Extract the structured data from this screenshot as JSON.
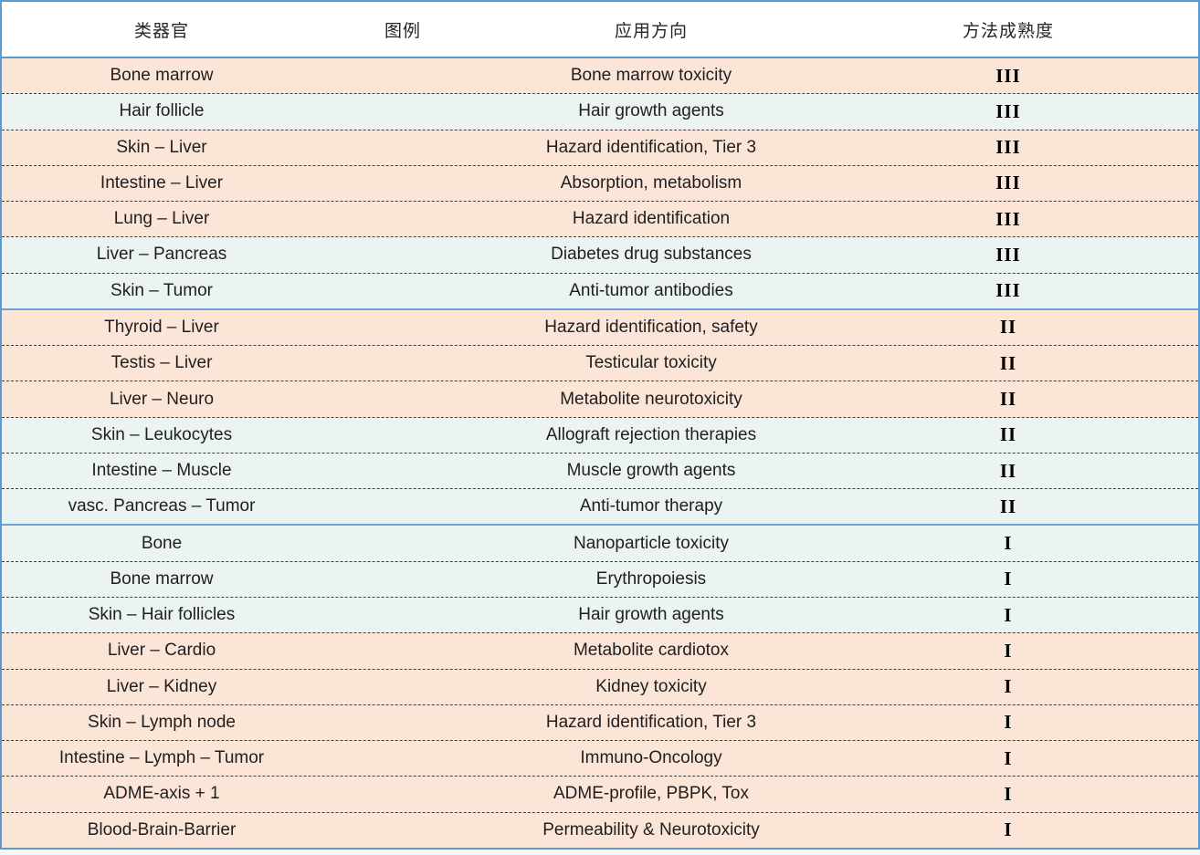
{
  "table": {
    "headers": [
      {
        "id": "organoid",
        "label": "类器官"
      },
      {
        "id": "legend",
        "label": "图例"
      },
      {
        "id": "application",
        "label": "应用方向"
      },
      {
        "id": "maturity",
        "label": "方法成熟度"
      }
    ],
    "rows": [
      {
        "organoid": "Bone marrow",
        "legend": "",
        "application": "Bone marrow toxicity",
        "maturity": "III",
        "tone": "peach",
        "group_start": false
      },
      {
        "organoid": "Hair follicle",
        "legend": "",
        "application": "Hair growth agents",
        "maturity": "III",
        "tone": "mint",
        "group_start": false
      },
      {
        "organoid": "Skin – Liver",
        "legend": "",
        "application": "Hazard identification, Tier 3",
        "maturity": "III",
        "tone": "peach",
        "group_start": false
      },
      {
        "organoid": "Intestine – Liver",
        "legend": "",
        "application": "Absorption, metabolism",
        "maturity": "III",
        "tone": "peach",
        "group_start": false
      },
      {
        "organoid": "Lung – Liver",
        "legend": "",
        "application": "Hazard identification",
        "maturity": "III",
        "tone": "peach",
        "group_start": false
      },
      {
        "organoid": "Liver – Pancreas",
        "legend": "",
        "application": "Diabetes drug substances",
        "maturity": "III",
        "tone": "mint",
        "group_start": false
      },
      {
        "organoid": "Skin – Tumor",
        "legend": "",
        "application": "Anti-tumor antibodies",
        "maturity": "III",
        "tone": "mint",
        "group_start": false
      },
      {
        "organoid": "Thyroid – Liver",
        "legend": "",
        "application": "Hazard identification, safety",
        "maturity": "II",
        "tone": "peach",
        "group_start": true
      },
      {
        "organoid": "Testis – Liver",
        "legend": "",
        "application": "Testicular toxicity",
        "maturity": "II",
        "tone": "peach",
        "group_start": false
      },
      {
        "organoid": "Liver – Neuro",
        "legend": "",
        "application": "Metabolite neurotoxicity",
        "maturity": "II",
        "tone": "peach",
        "group_start": false
      },
      {
        "organoid": "Skin – Leukocytes",
        "legend": "",
        "application": "Allograft rejection therapies",
        "maturity": "II",
        "tone": "mint",
        "group_start": false
      },
      {
        "organoid": "Intestine – Muscle",
        "legend": "",
        "application": "Muscle growth agents",
        "maturity": "II",
        "tone": "mint",
        "group_start": false
      },
      {
        "organoid": "vasc. Pancreas – Tumor",
        "legend": "",
        "application": "Anti-tumor therapy",
        "maturity": "II",
        "tone": "mint",
        "group_start": false
      },
      {
        "organoid": "Bone",
        "legend": "",
        "application": "Nanoparticle toxicity",
        "maturity": "I",
        "tone": "mint",
        "group_start": true
      },
      {
        "organoid": "Bone marrow",
        "legend": "",
        "application": "Erythropoiesis",
        "maturity": "I",
        "tone": "mint",
        "group_start": false
      },
      {
        "organoid": "Skin – Hair follicles",
        "legend": "",
        "application": "Hair growth agents",
        "maturity": "I",
        "tone": "mint",
        "group_start": false
      },
      {
        "organoid": "Liver – Cardio",
        "legend": "",
        "application": "Metabolite cardiotox",
        "maturity": "I",
        "tone": "peach",
        "group_start": false
      },
      {
        "organoid": "Liver – Kidney",
        "legend": "",
        "application": "Kidney toxicity",
        "maturity": "I",
        "tone": "peach",
        "group_start": false
      },
      {
        "organoid": "Skin – Lymph node",
        "legend": "",
        "application": "Hazard identification, Tier 3",
        "maturity": "I",
        "tone": "peach",
        "group_start": false
      },
      {
        "organoid": "Intestine – Lymph – Tumor",
        "legend": "",
        "application": "Immuno-Oncology",
        "maturity": "I",
        "tone": "peach",
        "group_start": false
      },
      {
        "organoid": "ADME-axis + 1",
        "legend": "",
        "application": "ADME-profile, PBPK, Tox",
        "maturity": "I",
        "tone": "peach",
        "group_start": false
      },
      {
        "organoid": "Blood-Brain-Barrier",
        "legend": "",
        "application": "Permeability & Neurotoxicity",
        "maturity": "I",
        "tone": "peach",
        "group_start": false
      }
    ],
    "colors": {
      "row_peach": "#FBE5D6",
      "row_mint": "#EBF4F2",
      "outer_border": "#5B9BD5",
      "group_divider": "#6FA0D8",
      "dash_divider": "#3F3F3F",
      "header_bg": "#FFFFFF",
      "text": "#1F1F1F"
    }
  }
}
